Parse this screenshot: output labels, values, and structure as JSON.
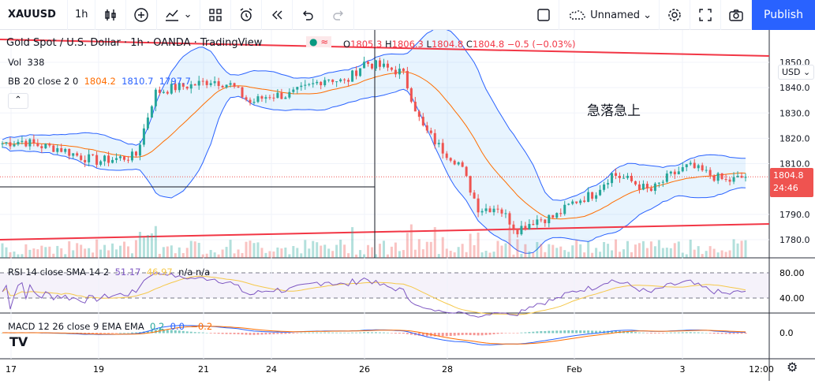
{
  "toolbar": {
    "symbol": "XAUUSD",
    "interval": "1h",
    "layout_name": "Unnamed",
    "publish": "Publish"
  },
  "legend": {
    "title": "Gold Spot / U.S. Dollar · 1h · OANDA · TradingView",
    "o_label": "O",
    "o": "1805.3",
    "h_label": "H",
    "h": "1806.3",
    "l_label": "L",
    "l": "1804.8",
    "c_label": "C",
    "c": "1804.8",
    "change": "−0.5 (−0.03%)",
    "vol_label": "Vol",
    "vol": "338",
    "bb_label": "BB 20 close 2 0",
    "bb_basis": "1804.2",
    "bb_upper": "1810.7",
    "bb_lower": "1797.7",
    "rsi_label": "RSI 14 close SMA 14 2",
    "rsi": "51.17",
    "rsi_sma": "46.97",
    "rsi_na1": "n/a",
    "rsi_na2": "n/a",
    "macd_label": "MACD 12 26 close 9 EMA EMA",
    "macd_hist": "0.2",
    "macd": "0.0",
    "macd_signal": "−0.2"
  },
  "annotation": "急落急上",
  "price_axis": {
    "currency": "USD",
    "ticks": [
      "1850.0",
      "1840.0",
      "1830.0",
      "1820.0",
      "1810.0",
      "1790.0",
      "1780.0"
    ],
    "last_price": "1804.8",
    "countdown": "24:46",
    "rsi_ticks": [
      "80.00",
      "40.00"
    ],
    "macd_ticks": [
      "0.0"
    ]
  },
  "time_axis": [
    "17",
    "19",
    "21",
    "24",
    "26",
    "28",
    "Feb",
    "3",
    "12:00"
  ],
  "colors": {
    "up": "#26a69a",
    "down": "#ef5350",
    "bb": "#2962ff",
    "basis": "#ff6d00",
    "trendline": "#f23645",
    "rsi": "#7e57c2",
    "accent": "#2962ff"
  },
  "chart_data": {
    "type": "candlestick",
    "y_range": [
      1775,
      1855
    ],
    "approx_close_path": [
      1818,
      1819,
      1817,
      1816,
      1813,
      1811,
      1812,
      1813,
      1838,
      1840,
      1841,
      1843,
      1841,
      1834,
      1837,
      1837,
      1840,
      1844,
      1842,
      1850,
      1848,
      1846,
      1825,
      1816,
      1810,
      1792,
      1793,
      1784,
      1788,
      1789,
      1795,
      1798,
      1806,
      1803,
      1799,
      1805,
      1809,
      1806,
      1803,
      1804.8
    ]
  }
}
